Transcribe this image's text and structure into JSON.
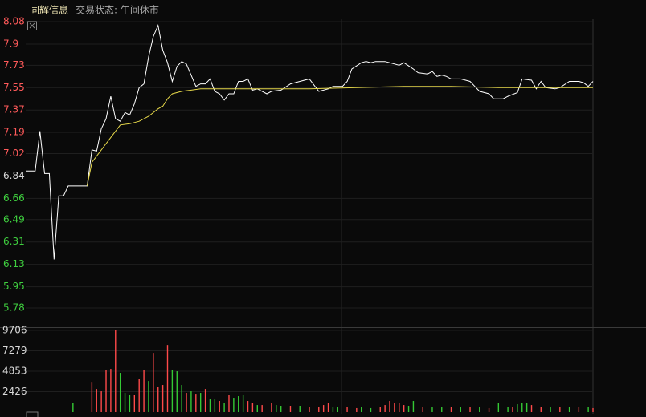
{
  "header": {
    "name": "同辉信息",
    "status": "交易状态: 午间休市"
  },
  "chart_data": [
    {
      "type": "line",
      "ylim": [
        5.78,
        8.08
      ],
      "xlim": [
        0,
        120
      ],
      "yticks": [
        8.08,
        7.9,
        7.73,
        7.55,
        7.37,
        7.19,
        7.02,
        6.84,
        6.66,
        6.49,
        6.31,
        6.13,
        5.95,
        5.78
      ],
      "ytick_colors": [
        "#ff5a5a",
        "#ff5a5a",
        "#ff5a5a",
        "#ff5a5a",
        "#ff5a5a",
        "#ff5a5a",
        "#ff5a5a",
        "#d8d8d8",
        "#3fcf3f",
        "#3fcf3f",
        "#3fcf3f",
        "#3fcf3f",
        "#3fcf3f",
        "#3fcf3f"
      ],
      "grid": true,
      "series": [
        {
          "color": "#ffffff",
          "x": [
            0,
            2,
            3,
            4,
            5,
            6,
            7,
            8,
            9,
            13,
            14,
            15,
            16,
            17,
            18,
            19,
            20,
            21,
            22,
            23,
            24,
            25,
            26,
            27,
            28,
            29,
            30,
            31,
            32,
            33,
            34,
            35,
            36,
            37,
            38,
            39,
            40,
            41,
            42,
            43,
            44,
            45,
            46,
            47,
            48,
            49,
            50,
            51,
            52,
            54,
            56,
            58,
            60,
            62,
            64,
            65,
            67,
            68,
            69,
            71,
            72,
            73,
            74,
            76,
            77,
            79,
            80,
            82,
            83,
            85,
            86,
            87,
            88,
            89,
            90,
            92,
            94,
            95,
            96,
            98,
            99,
            101,
            102,
            104,
            105,
            107,
            108,
            109,
            110,
            112,
            113,
            115,
            117,
            118,
            119,
            120
          ],
          "values": [
            6.88,
            6.88,
            7.2,
            6.86,
            6.86,
            6.17,
            6.68,
            6.68,
            6.76,
            6.76,
            7.05,
            7.04,
            7.22,
            7.3,
            7.48,
            7.3,
            7.28,
            7.35,
            7.33,
            7.42,
            7.55,
            7.58,
            7.8,
            7.96,
            8.05,
            7.85,
            7.75,
            7.6,
            7.72,
            7.76,
            7.74,
            7.65,
            7.56,
            7.58,
            7.58,
            7.62,
            7.52,
            7.5,
            7.45,
            7.5,
            7.5,
            7.6,
            7.6,
            7.62,
            7.53,
            7.54,
            7.52,
            7.5,
            7.52,
            7.53,
            7.58,
            7.6,
            7.62,
            7.52,
            7.54,
            7.56,
            7.56,
            7.6,
            7.7,
            7.75,
            7.76,
            7.75,
            7.76,
            7.76,
            7.75,
            7.73,
            7.75,
            7.7,
            7.67,
            7.66,
            7.68,
            7.64,
            7.65,
            7.64,
            7.62,
            7.62,
            7.6,
            7.56,
            7.52,
            7.5,
            7.46,
            7.46,
            7.48,
            7.51,
            7.62,
            7.61,
            7.54,
            7.6,
            7.55,
            7.54,
            7.55,
            7.6,
            7.6,
            7.59,
            7.56,
            7.6
          ]
        },
        {
          "color": "#e6d84a",
          "x": [
            13,
            14,
            16,
            18,
            20,
            22,
            24,
            26,
            28,
            29,
            30,
            31,
            33,
            35,
            37,
            40,
            50,
            60,
            70,
            80,
            90,
            100,
            110,
            120
          ],
          "values": [
            6.76,
            6.95,
            7.05,
            7.15,
            7.25,
            7.26,
            7.28,
            7.32,
            7.38,
            7.4,
            7.46,
            7.5,
            7.52,
            7.53,
            7.54,
            7.54,
            7.54,
            7.54,
            7.55,
            7.56,
            7.56,
            7.55,
            7.55,
            7.55
          ]
        }
      ]
    },
    {
      "type": "bar",
      "ylim": [
        0,
        9706
      ],
      "xlim": [
        0,
        120
      ],
      "yticks": [
        9706,
        7279,
        4853,
        2426
      ],
      "grid": true,
      "x": [
        10,
        14,
        15,
        16,
        17,
        18,
        19,
        20,
        21,
        22,
        23,
        24,
        25,
        26,
        27,
        28,
        29,
        30,
        31,
        32,
        33,
        34,
        35,
        36,
        37,
        38,
        39,
        40,
        41,
        42,
        43,
        44,
        45,
        46,
        47,
        48,
        49,
        50,
        52,
        53,
        54,
        56,
        58,
        60,
        62,
        63,
        64,
        65,
        66,
        68,
        70,
        71,
        73,
        75,
        76,
        77,
        78,
        79,
        80,
        81,
        82,
        84,
        86,
        88,
        90,
        92,
        94,
        96,
        98,
        100,
        102,
        103,
        104,
        105,
        106,
        107,
        109,
        111,
        113,
        115,
        117,
        119,
        120
      ],
      "values": [
        1050,
        3600,
        2750,
        2470,
        4950,
        5130,
        9706,
        4660,
        2280,
        2090,
        2000,
        3990,
        4950,
        3700,
        7030,
        2950,
        3230,
        7980,
        4950,
        4850,
        3230,
        2280,
        2470,
        2180,
        2280,
        2750,
        1520,
        1610,
        1330,
        1140,
        2090,
        1710,
        1900,
        2090,
        1330,
        1050,
        850,
        850,
        1050,
        850,
        760,
        760,
        760,
        660,
        660,
        850,
        1140,
        570,
        570,
        570,
        480,
        570,
        480,
        570,
        850,
        1330,
        1140,
        1050,
        850,
        760,
        1330,
        660,
        570,
        570,
        570,
        570,
        570,
        570,
        480,
        1050,
        660,
        660,
        950,
        1140,
        1050,
        850,
        570,
        570,
        570,
        660,
        570,
        570,
        480
      ],
      "colors": [
        "g",
        "r",
        "r",
        "r",
        "r",
        "r",
        "r",
        "g",
        "g",
        "g",
        "r",
        "r",
        "r",
        "g",
        "r",
        "r",
        "r",
        "r",
        "g",
        "g",
        "g",
        "r",
        "g",
        "r",
        "g",
        "r",
        "g",
        "g",
        "r",
        "g",
        "r",
        "g",
        "g",
        "g",
        "r",
        "r",
        "g",
        "r",
        "r",
        "g",
        "g",
        "r",
        "g",
        "r",
        "r",
        "r",
        "r",
        "g",
        "g",
        "r",
        "r",
        "g",
        "g",
        "r",
        "r",
        "r",
        "r",
        "r",
        "r",
        "g",
        "g",
        "r",
        "g",
        "g",
        "r",
        "g",
        "r",
        "g",
        "r",
        "g",
        "g",
        "r",
        "g",
        "g",
        "g",
        "r",
        "r",
        "g",
        "r",
        "g",
        "r",
        "g",
        "r"
      ],
      "palette": {
        "r": "#ff4a4a",
        "g": "#34c934"
      }
    }
  ]
}
